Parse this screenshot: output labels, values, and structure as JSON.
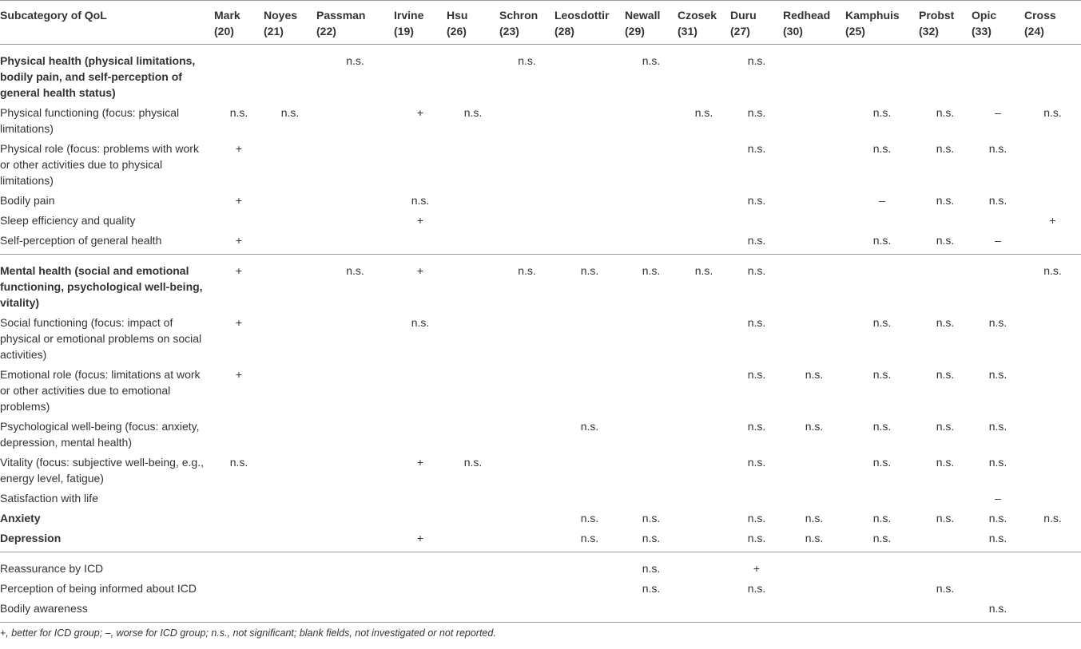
{
  "table": {
    "header": {
      "first": "Subcategory of QoL",
      "columns": [
        {
          "name": "Mark",
          "ref": "(20)"
        },
        {
          "name": "Noyes",
          "ref": "(21)"
        },
        {
          "name": "Passman",
          "ref": "(22)"
        },
        {
          "name": "Irvine",
          "ref": "(19)"
        },
        {
          "name": "Hsu",
          "ref": "(26)"
        },
        {
          "name": "Schron",
          "ref": "(23)"
        },
        {
          "name": "Leosdottir",
          "ref": "(28)"
        },
        {
          "name": "Newall",
          "ref": "(29)"
        },
        {
          "name": "Czosek",
          "ref": "(31)"
        },
        {
          "name": "Duru",
          "ref": "(27)"
        },
        {
          "name": "Redhead",
          "ref": "(30)"
        },
        {
          "name": "Kamphuis",
          "ref": "(25)"
        },
        {
          "name": "Probst",
          "ref": "(32)"
        },
        {
          "name": "Opic",
          "ref": "(33)"
        },
        {
          "name": "Cross",
          "ref": "(24)"
        }
      ]
    },
    "sections": [
      [
        {
          "label": "Physical health (physical limitations, bodily pain, and self-perception of general health status)",
          "bold": true,
          "cells": [
            null,
            null,
            "n.s.",
            null,
            null,
            "n.s.",
            null,
            "n.s.",
            null,
            "n.s.",
            null,
            null,
            null,
            null,
            null
          ]
        },
        {
          "label": "Physical functioning (focus: physical limitations)",
          "bold": false,
          "cells": [
            "n.s.",
            "n.s.",
            null,
            "+",
            "n.s.",
            null,
            null,
            null,
            "n.s.",
            "n.s.",
            null,
            "n.s.",
            "n.s.",
            "–",
            "n.s."
          ]
        },
        {
          "label": "Physical role (focus: problems with work or other activities due to physical limitations)",
          "bold": false,
          "cells": [
            "+",
            null,
            null,
            null,
            null,
            null,
            null,
            null,
            null,
            "n.s.",
            null,
            "n.s.",
            "n.s.",
            "n.s.",
            null
          ]
        },
        {
          "label": "Bodily pain",
          "bold": false,
          "cells": [
            "+",
            null,
            null,
            "n.s.",
            null,
            null,
            null,
            null,
            null,
            "n.s.",
            null,
            "–",
            "n.s.",
            "n.s.",
            null
          ]
        },
        {
          "label": "Sleep efficiency and quality",
          "bold": false,
          "cells": [
            null,
            null,
            null,
            "+",
            null,
            null,
            null,
            null,
            null,
            null,
            null,
            null,
            null,
            null,
            "+"
          ]
        },
        {
          "label": "Self-perception of general health",
          "bold": false,
          "cells": [
            "+",
            null,
            null,
            null,
            null,
            null,
            null,
            null,
            null,
            "n.s.",
            null,
            "n.s.",
            "n.s.",
            "–",
            null
          ]
        }
      ],
      [
        {
          "label": "Mental health (social and emotional functioning, psychological well-being, vitality)",
          "bold": true,
          "cells": [
            "+",
            null,
            "n.s.",
            "+",
            null,
            "n.s.",
            "n.s.",
            "n.s.",
            "n.s.",
            "n.s.",
            null,
            null,
            null,
            null,
            "n.s."
          ]
        },
        {
          "label": "Social functioning (focus: impact of physical or emotional problems on social activities)",
          "bold": false,
          "cells": [
            "+",
            null,
            null,
            "n.s.",
            null,
            null,
            null,
            null,
            null,
            "n.s.",
            null,
            "n.s.",
            "n.s.",
            "n.s.",
            null
          ]
        },
        {
          "label": "Emotional role (focus: limitations at work or other activities due to emotional problems)",
          "bold": false,
          "cells": [
            "+",
            null,
            null,
            null,
            null,
            null,
            null,
            null,
            null,
            "n.s.",
            "n.s.",
            "n.s.",
            "n.s.",
            "n.s.",
            null
          ]
        },
        {
          "label": "Psychological well-being (focus: anxiety, depression, mental health)",
          "bold": false,
          "cells": [
            null,
            null,
            null,
            null,
            null,
            null,
            "n.s.",
            null,
            null,
            "n.s.",
            "n.s.",
            "n.s.",
            "n.s.",
            "n.s.",
            null
          ]
        },
        {
          "label": "Vitality (focus: subjective well-being, e.g., energy level, fatigue)",
          "bold": false,
          "cells": [
            "n.s.",
            null,
            null,
            "+",
            "n.s.",
            null,
            null,
            null,
            null,
            "n.s.",
            null,
            "n.s.",
            "n.s.",
            "n.s.",
            null
          ]
        },
        {
          "label": "Satisfaction with life",
          "bold": false,
          "cells": [
            null,
            null,
            null,
            null,
            null,
            null,
            null,
            null,
            null,
            null,
            null,
            null,
            null,
            "–",
            null
          ]
        },
        {
          "label": "Anxiety",
          "bold": true,
          "cells": [
            null,
            null,
            null,
            null,
            null,
            null,
            "n.s.",
            "n.s.",
            null,
            "n.s.",
            "n.s.",
            "n.s.",
            "n.s.",
            "n.s.",
            "n.s."
          ]
        },
        {
          "label": "Depression",
          "bold": true,
          "cells": [
            null,
            null,
            null,
            "+",
            null,
            null,
            "n.s.",
            "n.s.",
            null,
            "n.s.",
            "n.s.",
            "n.s.",
            null,
            "n.s.",
            null
          ]
        }
      ],
      [
        {
          "label": "Reassurance by ICD",
          "bold": false,
          "cells": [
            null,
            null,
            null,
            null,
            null,
            null,
            null,
            "n.s.",
            null,
            "+",
            null,
            null,
            null,
            null,
            null
          ]
        },
        {
          "label": "Perception of being informed about ICD",
          "bold": false,
          "cells": [
            null,
            null,
            null,
            null,
            null,
            null,
            null,
            "n.s.",
            null,
            "n.s.",
            null,
            null,
            "n.s.",
            null,
            null
          ]
        },
        {
          "label": "Bodily awareness",
          "bold": false,
          "cells": [
            null,
            null,
            null,
            null,
            null,
            null,
            null,
            null,
            null,
            null,
            null,
            null,
            null,
            "n.s.",
            null
          ]
        }
      ]
    ],
    "footnote": "+, better for ICD group; –, worse for ICD group; n.s., not significant; blank fields, not investigated or not reported."
  }
}
